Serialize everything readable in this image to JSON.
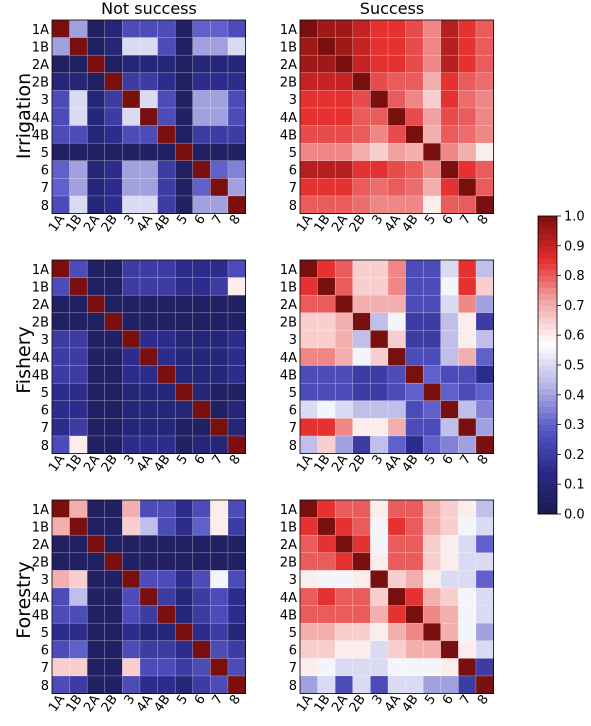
{
  "chart_data": {
    "type": "heatmap",
    "column_titles": [
      "Not success",
      "Success"
    ],
    "row_titles": [
      "Irrigation",
      "Fishery",
      "Forestry"
    ],
    "categories": [
      "1A",
      "1B",
      "2A",
      "2B",
      "3",
      "4A",
      "4B",
      "5",
      "6",
      "7",
      "8"
    ],
    "colorbar": {
      "min": 0.0,
      "max": 1.0,
      "ticks": [
        "0.0",
        "0.1",
        "0.2",
        "0.3",
        "0.4",
        "0.5",
        "0.6",
        "0.7",
        "0.8",
        "0.9",
        "1.0"
      ],
      "colors": [
        "#1b1b4d",
        "#2a2a8a",
        "#5757c8",
        "#b4b4e6",
        "#ffffff",
        "#f2a5a5",
        "#e52b2b",
        "#7a0f0f"
      ]
    },
    "panels": [
      {
        "id": "irrigation-not-success",
        "matrix": [
          [
            1.0,
            0.4,
            0.05,
            0.1,
            0.25,
            0.25,
            0.25,
            0.05,
            0.3,
            0.3,
            0.25
          ],
          [
            0.4,
            1.0,
            0.05,
            0.1,
            0.5,
            0.5,
            0.25,
            0.05,
            0.4,
            0.4,
            0.5
          ],
          [
            0.05,
            0.05,
            1.0,
            0.05,
            0.1,
            0.1,
            0.1,
            0.05,
            0.1,
            0.1,
            0.1
          ],
          [
            0.1,
            0.1,
            0.05,
            1.0,
            0.2,
            0.2,
            0.15,
            0.05,
            0.15,
            0.15,
            0.15
          ],
          [
            0.25,
            0.5,
            0.1,
            0.2,
            1.0,
            0.5,
            0.25,
            0.05,
            0.4,
            0.4,
            0.25
          ],
          [
            0.25,
            0.5,
            0.1,
            0.2,
            0.5,
            1.0,
            0.25,
            0.05,
            0.4,
            0.4,
            0.25
          ],
          [
            0.25,
            0.25,
            0.1,
            0.15,
            0.25,
            0.25,
            1.0,
            0.05,
            0.2,
            0.2,
            0.2
          ],
          [
            0.05,
            0.05,
            0.05,
            0.05,
            0.05,
            0.05,
            0.05,
            1.0,
            0.05,
            0.05,
            0.05
          ],
          [
            0.3,
            0.4,
            0.1,
            0.15,
            0.4,
            0.4,
            0.2,
            0.05,
            1.0,
            0.3,
            0.35
          ],
          [
            0.3,
            0.4,
            0.1,
            0.15,
            0.4,
            0.4,
            0.2,
            0.05,
            0.3,
            1.0,
            0.4
          ],
          [
            0.25,
            0.5,
            0.1,
            0.15,
            0.5,
            0.5,
            0.2,
            0.05,
            0.4,
            0.4,
            1.0
          ]
        ]
      },
      {
        "id": "irrigation-success",
        "matrix": [
          [
            1.0,
            0.95,
            0.95,
            0.9,
            0.85,
            0.85,
            0.82,
            0.75,
            0.92,
            0.85,
            0.8
          ],
          [
            0.95,
            1.0,
            0.95,
            0.9,
            0.85,
            0.85,
            0.82,
            0.75,
            0.92,
            0.85,
            0.8
          ],
          [
            0.95,
            0.95,
            1.0,
            0.9,
            0.85,
            0.85,
            0.82,
            0.75,
            0.92,
            0.85,
            0.8
          ],
          [
            0.9,
            0.9,
            0.9,
            1.0,
            0.82,
            0.8,
            0.8,
            0.7,
            0.85,
            0.8,
            0.78
          ],
          [
            0.85,
            0.85,
            0.85,
            0.82,
            1.0,
            0.8,
            0.75,
            0.65,
            0.85,
            0.78,
            0.75
          ],
          [
            0.85,
            0.85,
            0.85,
            0.8,
            0.8,
            1.0,
            0.82,
            0.72,
            0.82,
            0.8,
            0.75
          ],
          [
            0.82,
            0.82,
            0.82,
            0.8,
            0.75,
            0.82,
            1.0,
            0.7,
            0.8,
            0.78,
            0.75
          ],
          [
            0.75,
            0.75,
            0.75,
            0.7,
            0.65,
            0.72,
            0.7,
            1.0,
            0.75,
            0.7,
            0.6
          ],
          [
            0.92,
            0.92,
            0.92,
            0.85,
            0.85,
            0.82,
            0.8,
            0.75,
            1.0,
            0.85,
            0.8
          ],
          [
            0.85,
            0.85,
            0.85,
            0.8,
            0.78,
            0.8,
            0.78,
            0.7,
            0.85,
            1.0,
            0.8
          ],
          [
            0.8,
            0.8,
            0.8,
            0.78,
            0.75,
            0.75,
            0.75,
            0.6,
            0.8,
            0.8,
            1.0
          ]
        ]
      },
      {
        "id": "fishery-not-success",
        "matrix": [
          [
            1.0,
            0.25,
            0.05,
            0.05,
            0.2,
            0.2,
            0.2,
            0.15,
            0.15,
            0.15,
            0.25
          ],
          [
            0.25,
            1.0,
            0.05,
            0.05,
            0.2,
            0.2,
            0.2,
            0.15,
            0.15,
            0.2,
            0.6
          ],
          [
            0.05,
            0.05,
            1.0,
            0.05,
            0.05,
            0.05,
            0.05,
            0.05,
            0.05,
            0.05,
            0.05
          ],
          [
            0.05,
            0.05,
            0.05,
            1.0,
            0.05,
            0.05,
            0.05,
            0.05,
            0.05,
            0.05,
            0.05
          ],
          [
            0.2,
            0.2,
            0.05,
            0.05,
            1.0,
            0.15,
            0.15,
            0.1,
            0.1,
            0.1,
            0.15
          ],
          [
            0.2,
            0.2,
            0.05,
            0.05,
            0.15,
            1.0,
            0.15,
            0.1,
            0.1,
            0.1,
            0.15
          ],
          [
            0.2,
            0.2,
            0.05,
            0.05,
            0.15,
            0.15,
            1.0,
            0.1,
            0.1,
            0.1,
            0.15
          ],
          [
            0.15,
            0.15,
            0.05,
            0.05,
            0.1,
            0.1,
            0.1,
            1.0,
            0.1,
            0.05,
            0.05
          ],
          [
            0.15,
            0.15,
            0.05,
            0.05,
            0.1,
            0.1,
            0.1,
            0.1,
            1.0,
            0.05,
            0.1
          ],
          [
            0.15,
            0.2,
            0.05,
            0.05,
            0.1,
            0.1,
            0.1,
            0.05,
            0.05,
            1.0,
            0.1
          ],
          [
            0.25,
            0.6,
            0.05,
            0.05,
            0.15,
            0.15,
            0.15,
            0.05,
            0.1,
            0.1,
            1.0
          ]
        ]
      },
      {
        "id": "fishery-success",
        "matrix": [
          [
            1.0,
            0.85,
            0.8,
            0.65,
            0.65,
            0.75,
            0.25,
            0.25,
            0.5,
            0.85,
            0.45
          ],
          [
            0.85,
            1.0,
            0.8,
            0.65,
            0.65,
            0.75,
            0.25,
            0.25,
            0.55,
            0.85,
            0.65
          ],
          [
            0.8,
            0.8,
            1.0,
            0.7,
            0.7,
            0.7,
            0.25,
            0.25,
            0.5,
            0.75,
            0.4
          ],
          [
            0.65,
            0.65,
            0.7,
            1.0,
            0.45,
            0.55,
            0.2,
            0.2,
            0.45,
            0.6,
            0.2
          ],
          [
            0.65,
            0.65,
            0.7,
            0.45,
            1.0,
            0.65,
            0.2,
            0.2,
            0.45,
            0.6,
            0.45
          ],
          [
            0.75,
            0.75,
            0.7,
            0.55,
            0.65,
            1.0,
            0.25,
            0.25,
            0.45,
            0.7,
            0.3
          ],
          [
            0.25,
            0.25,
            0.25,
            0.2,
            0.2,
            0.25,
            1.0,
            0.3,
            0.25,
            0.25,
            0.15
          ],
          [
            0.25,
            0.25,
            0.25,
            0.2,
            0.2,
            0.25,
            0.3,
            1.0,
            0.3,
            0.25,
            0.3
          ],
          [
            0.5,
            0.55,
            0.5,
            0.45,
            0.45,
            0.45,
            0.25,
            0.3,
            1.0,
            0.45,
            0.35
          ],
          [
            0.85,
            0.85,
            0.75,
            0.6,
            0.6,
            0.7,
            0.25,
            0.25,
            0.45,
            1.0,
            0.4
          ],
          [
            0.45,
            0.65,
            0.4,
            0.2,
            0.45,
            0.3,
            0.15,
            0.3,
            0.35,
            0.4,
            1.0
          ]
        ]
      },
      {
        "id": "forestry-not-success",
        "matrix": [
          [
            1.0,
            0.7,
            0.05,
            0.05,
            0.7,
            0.25,
            0.25,
            0.15,
            0.25,
            0.6,
            0.25
          ],
          [
            0.7,
            1.0,
            0.05,
            0.05,
            0.65,
            0.45,
            0.25,
            0.15,
            0.3,
            0.6,
            0.2
          ],
          [
            0.05,
            0.05,
            1.0,
            0.05,
            0.05,
            0.05,
            0.05,
            0.05,
            0.05,
            0.05,
            0.05
          ],
          [
            0.05,
            0.05,
            0.05,
            1.0,
            0.05,
            0.05,
            0.05,
            0.05,
            0.05,
            0.05,
            0.05
          ],
          [
            0.7,
            0.65,
            0.05,
            0.05,
            1.0,
            0.25,
            0.25,
            0.15,
            0.25,
            0.55,
            0.25
          ],
          [
            0.25,
            0.45,
            0.05,
            0.05,
            0.25,
            1.0,
            0.2,
            0.1,
            0.2,
            0.25,
            0.15
          ],
          [
            0.25,
            0.25,
            0.05,
            0.05,
            0.25,
            0.2,
            1.0,
            0.1,
            0.2,
            0.25,
            0.15
          ],
          [
            0.15,
            0.15,
            0.05,
            0.05,
            0.15,
            0.1,
            0.1,
            1.0,
            0.15,
            0.2,
            0.1
          ],
          [
            0.25,
            0.3,
            0.05,
            0.05,
            0.25,
            0.2,
            0.2,
            0.15,
            1.0,
            0.25,
            0.2
          ],
          [
            0.65,
            0.65,
            0.05,
            0.05,
            0.65,
            0.25,
            0.25,
            0.2,
            0.25,
            1.0,
            0.25
          ],
          [
            0.25,
            0.2,
            0.05,
            0.05,
            0.25,
            0.15,
            0.15,
            0.1,
            0.2,
            0.25,
            1.0
          ]
        ]
      },
      {
        "id": "forestry-success",
        "matrix": [
          [
            1.0,
            0.85,
            0.8,
            0.8,
            0.6,
            0.8,
            0.8,
            0.7,
            0.65,
            0.6,
            0.45
          ],
          [
            0.85,
            1.0,
            0.85,
            0.8,
            0.55,
            0.85,
            0.8,
            0.7,
            0.65,
            0.55,
            0.5
          ],
          [
            0.8,
            0.85,
            1.0,
            0.85,
            0.55,
            0.8,
            0.8,
            0.65,
            0.6,
            0.5,
            0.3
          ],
          [
            0.8,
            0.8,
            0.85,
            1.0,
            0.6,
            0.8,
            0.8,
            0.65,
            0.6,
            0.5,
            0.5
          ],
          [
            0.6,
            0.55,
            0.55,
            0.6,
            1.0,
            0.65,
            0.7,
            0.6,
            0.5,
            0.5,
            0.3
          ],
          [
            0.8,
            0.85,
            0.8,
            0.8,
            0.65,
            1.0,
            0.85,
            0.7,
            0.65,
            0.55,
            0.5
          ],
          [
            0.8,
            0.8,
            0.8,
            0.8,
            0.7,
            0.85,
            1.0,
            0.75,
            0.7,
            0.55,
            0.5
          ],
          [
            0.7,
            0.7,
            0.65,
            0.65,
            0.6,
            0.7,
            0.75,
            1.0,
            0.7,
            0.55,
            0.4
          ],
          [
            0.65,
            0.65,
            0.6,
            0.6,
            0.5,
            0.65,
            0.7,
            0.7,
            1.0,
            0.6,
            0.5
          ],
          [
            0.6,
            0.55,
            0.5,
            0.5,
            0.5,
            0.55,
            0.55,
            0.55,
            0.6,
            1.0,
            0.2
          ],
          [
            0.4,
            0.5,
            0.25,
            0.5,
            0.25,
            0.5,
            0.5,
            0.4,
            0.4,
            0.2,
            1.0
          ]
        ]
      }
    ]
  }
}
